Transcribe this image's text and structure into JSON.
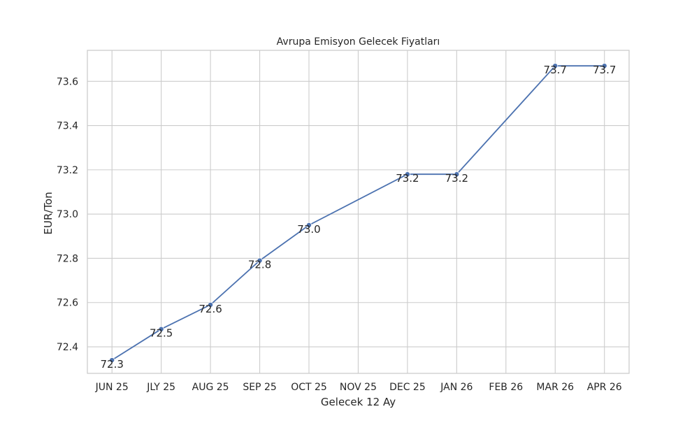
{
  "chart_data": {
    "type": "line",
    "title": "Avrupa Emisyon Gelecek Fiyatları",
    "xlabel": "Gelecek 12 Ay",
    "ylabel": "EUR/Ton",
    "categories": [
      "JUN 25",
      "JLY 25",
      "AUG 25",
      "SEP 25",
      "OCT 25",
      "NOV 25",
      "DEC 25",
      "JAN 26",
      "FEB 26",
      "MAR 26",
      "APR 26"
    ],
    "series": [
      {
        "values": [
          72.34,
          72.48,
          72.59,
          72.79,
          72.95,
          null,
          73.18,
          73.18,
          null,
          73.67,
          73.67
        ],
        "data_labels": [
          "72.3",
          "72.5",
          "72.6",
          "72.8",
          "73.0",
          "",
          "73.2",
          "73.2",
          "",
          "73.7",
          "73.7"
        ],
        "color": "#4c72b0"
      }
    ],
    "yticks": [
      72.4,
      72.6,
      72.8,
      73.0,
      73.2,
      73.4,
      73.6
    ],
    "ytick_labels": [
      "72.4",
      "72.6",
      "72.8",
      "73.0",
      "73.2",
      "73.4",
      "73.6"
    ],
    "ylim": [
      72.28,
      73.74
    ],
    "grid": true
  }
}
